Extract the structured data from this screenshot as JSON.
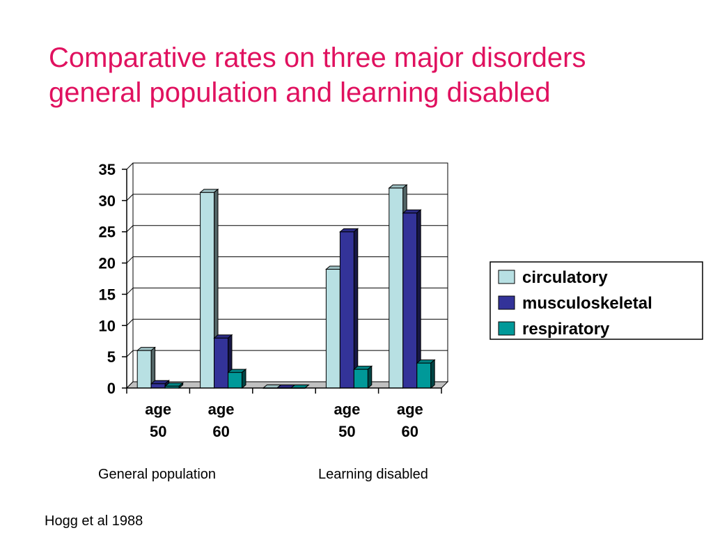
{
  "title": {
    "line1": "Comparative rates on three major disorders",
    "line2": "general population and learning disabled"
  },
  "chart_data": {
    "type": "bar",
    "style": "3d-clustered",
    "categories": [
      {
        "label": [
          "age",
          "50"
        ],
        "group": "General population"
      },
      {
        "label": [
          "age",
          "60"
        ],
        "group": "General population"
      },
      {
        "label": [
          "",
          ""
        ],
        "group": ""
      },
      {
        "label": [
          "age",
          "50"
        ],
        "group": "Learning disabled"
      },
      {
        "label": [
          "age",
          "60"
        ],
        "group": "Learning disabled"
      }
    ],
    "series": [
      {
        "name": "circulatory",
        "color": "#b8e0e3",
        "values": [
          6,
          31.3,
          0,
          19,
          32
        ]
      },
      {
        "name": "musculoskeletal",
        "color": "#333399",
        "values": [
          0.7,
          8,
          0,
          25,
          28
        ]
      },
      {
        "name": "respiratory",
        "color": "#009999",
        "values": [
          0.3,
          2.5,
          0,
          3,
          4
        ]
      }
    ],
    "ylim": [
      0,
      35
    ],
    "yticks": [
      0,
      5,
      10,
      15,
      20,
      25,
      30,
      35
    ],
    "grid": true,
    "legend_position": "right"
  },
  "group_labels": {
    "general": "General population",
    "learning": "Learning disabled"
  },
  "source": "Hogg et al 1988"
}
